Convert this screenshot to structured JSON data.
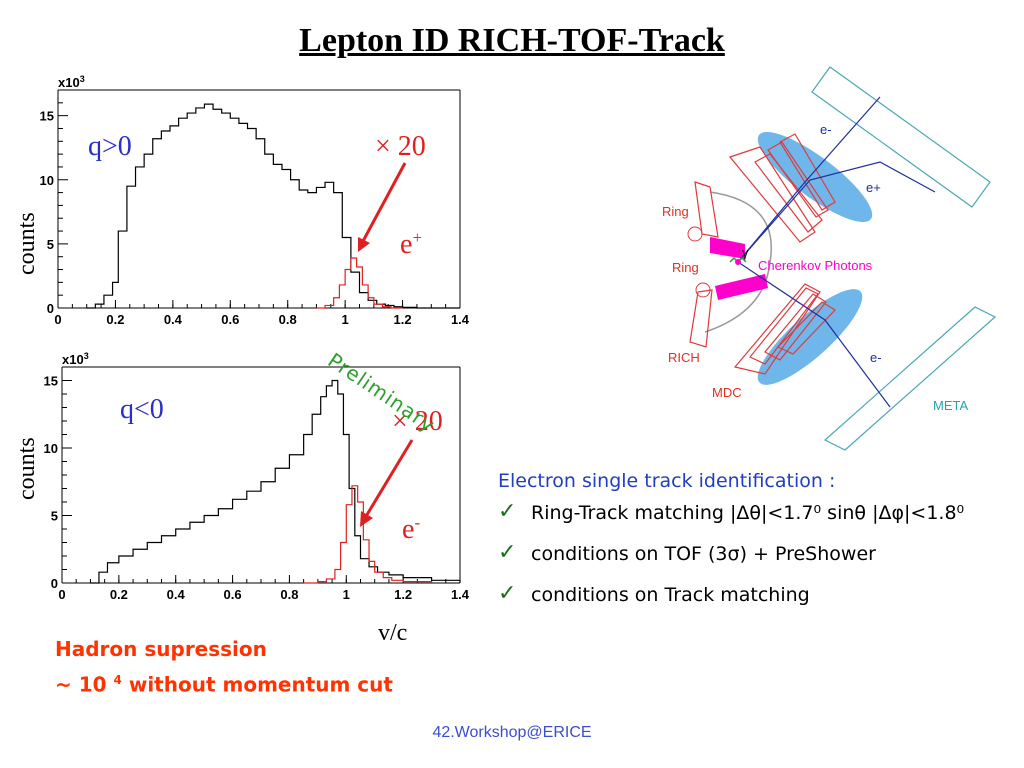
{
  "title": "Lepton ID RICH-TOF-Track",
  "chart_data": [
    {
      "type": "histogram",
      "panel": "top",
      "annotation_charge": "q>0",
      "annotation_scale": "× 20",
      "annotation_particle": "e",
      "annotation_particle_sup": "+",
      "xlabel": "",
      "ylabel": "counts",
      "y_multiplier_label": "x10",
      "y_multiplier_exp": "3",
      "xlim": [
        0,
        1.4
      ],
      "ylim": [
        0,
        17
      ],
      "xticks": [
        "0",
        "0.2",
        "0.4",
        "0.6",
        "0.8",
        "1",
        "1.2",
        "1.4"
      ],
      "yticks": [
        "0",
        "5",
        "10",
        "15"
      ],
      "series": [
        {
          "color": "#000000",
          "x": [
            0.1,
            0.13,
            0.16,
            0.19,
            0.21,
            0.24,
            0.27,
            0.3,
            0.33,
            0.36,
            0.39,
            0.42,
            0.45,
            0.48,
            0.51,
            0.54,
            0.57,
            0.6,
            0.63,
            0.66,
            0.69,
            0.72,
            0.75,
            0.78,
            0.81,
            0.84,
            0.87,
            0.9,
            0.93,
            0.96,
            0.99,
            1.02,
            1.05,
            1.08,
            1.11,
            1.14,
            1.17,
            1.2,
            1.25,
            1.3,
            1.4
          ],
          "y": [
            0.0,
            0.3,
            1.0,
            2.0,
            6.0,
            9.5,
            11.0,
            12.0,
            13.2,
            13.8,
            14.2,
            14.8,
            15.2,
            15.6,
            15.9,
            15.5,
            15.2,
            14.8,
            14.4,
            14.0,
            13.2,
            12.0,
            11.2,
            10.8,
            10.0,
            9.2,
            9.0,
            9.4,
            9.8,
            9.0,
            5.5,
            2.8,
            1.2,
            0.6,
            0.3,
            0.2,
            0.1,
            0.05,
            0.0,
            0.0,
            0.0
          ]
        },
        {
          "color": "#e02020",
          "x": [
            0.9,
            0.93,
            0.96,
            0.98,
            1.0,
            1.02,
            1.04,
            1.06,
            1.08,
            1.1,
            1.13,
            1.16,
            1.2
          ],
          "y": [
            0.0,
            0.2,
            0.8,
            1.8,
            3.0,
            3.9,
            3.2,
            1.8,
            0.8,
            0.3,
            0.1,
            0.0,
            0.0
          ]
        }
      ]
    },
    {
      "type": "histogram",
      "panel": "bottom",
      "annotation_charge": "q<0",
      "annotation_scale": "× 20",
      "annotation_particle": "e",
      "annotation_particle_sup": "-",
      "xlabel": "v/c",
      "ylabel": "counts",
      "y_multiplier_label": "x10",
      "y_multiplier_exp": "3",
      "xlim": [
        0,
        1.4
      ],
      "ylim": [
        0,
        16
      ],
      "xticks": [
        "0",
        "0.2",
        "0.4",
        "0.6",
        "0.8",
        "1",
        "1.2",
        "1.4"
      ],
      "yticks": [
        "0",
        "5",
        "10",
        "15"
      ],
      "series": [
        {
          "color": "#000000",
          "x": [
            0.1,
            0.13,
            0.16,
            0.2,
            0.25,
            0.3,
            0.35,
            0.4,
            0.45,
            0.5,
            0.55,
            0.6,
            0.65,
            0.7,
            0.75,
            0.8,
            0.85,
            0.88,
            0.91,
            0.93,
            0.95,
            0.97,
            0.99,
            1.01,
            1.03,
            1.05,
            1.08,
            1.11,
            1.15,
            1.2,
            1.3,
            1.4
          ],
          "y": [
            0.0,
            0.8,
            1.5,
            2.0,
            2.5,
            3.0,
            3.5,
            4.0,
            4.5,
            5.0,
            5.5,
            6.2,
            6.8,
            7.5,
            8.5,
            9.5,
            11.0,
            12.5,
            13.8,
            14.6,
            15.0,
            14.0,
            11.0,
            7.0,
            3.5,
            1.8,
            1.2,
            0.8,
            0.6,
            0.4,
            0.2,
            0.0
          ]
        },
        {
          "color": "#e02020",
          "x": [
            0.85,
            0.9,
            0.93,
            0.96,
            0.98,
            1.0,
            1.02,
            1.04,
            1.06,
            1.08,
            1.1,
            1.13,
            1.16,
            1.2,
            1.3
          ],
          "y": [
            0.0,
            0.1,
            0.3,
            1.0,
            3.0,
            5.8,
            7.2,
            6.0,
            3.2,
            1.6,
            0.8,
            0.4,
            0.2,
            0.1,
            0.0
          ]
        }
      ]
    }
  ],
  "preliminary": "Preliminary",
  "hadron": {
    "line1": "Hadron supression",
    "line2_prefix": "~ 10",
    "line2_exp": "4",
    "line2_suffix": " without momentum cut"
  },
  "electron": {
    "heading": "Electron single track identification :",
    "items": [
      "Ring-Track matching  |Δθ|<1.7⁰  sinθ |Δφ|<1.8⁰",
      "conditions on TOF (3σ) + PreShower",
      "conditions on Track matching"
    ]
  },
  "diagram": {
    "labels": {
      "ring_top": "Ring",
      "ring_bottom": "Ring",
      "rich": "RICH",
      "mdc": "MDC",
      "meta": "META",
      "e_minus_top": "e-",
      "e_plus": "e+",
      "e_minus_bottom": "e-",
      "gamma": "γ",
      "cherenkov": "Cherenkov Photons"
    },
    "colors": {
      "ring_label": "#e03020",
      "track_label": "#1f2f9f",
      "meta_label": "#2a9fb0",
      "magenta": "#ff00cc",
      "ellipse": "#6fb7ea"
    }
  },
  "footer": "42.Workshop@ERICE"
}
